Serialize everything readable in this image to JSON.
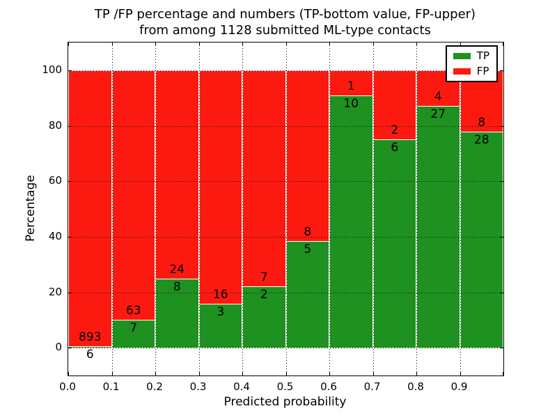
{
  "title": {
    "line1": "TP /FP percentage and numbers (TP-bottom value, FP-upper)",
    "line2": "from among 1128 submitted ML-type contacts"
  },
  "axes": {
    "xlabel": "Predicted probability",
    "ylabel": "Percentage"
  },
  "chart_data": {
    "type": "bar",
    "stacked": true,
    "title": "TP /FP percentage and numbers (TP-bottom value, FP-upper)\nfrom among 1128 submitted ML-type contacts",
    "xlabel": "Predicted probability",
    "ylabel": "Percentage",
    "total_submitted_contacts": 1128,
    "bin_edges": [
      0.0,
      0.1,
      0.2,
      0.3,
      0.4,
      0.5,
      0.6,
      0.7,
      0.8,
      0.9,
      1.0
    ],
    "xticks": [
      "0.0",
      "0.1",
      "0.2",
      "0.3",
      "0.4",
      "0.5",
      "0.6",
      "0.7",
      "0.8",
      "0.9"
    ],
    "yticks": [
      0,
      20,
      40,
      60,
      80,
      100
    ],
    "xlim": [
      0.0,
      1.0
    ],
    "ylim": [
      -10,
      110
    ],
    "grid": "dotted, both axes",
    "legend_position": "upper right",
    "series": [
      {
        "name": "TP",
        "color": "#1e9121",
        "values": [
          6,
          7,
          8,
          3,
          2,
          5,
          10,
          6,
          27,
          28
        ]
      },
      {
        "name": "FP",
        "color": "#fc1a10",
        "values": [
          893,
          63,
          24,
          16,
          7,
          8,
          1,
          2,
          4,
          8
        ]
      }
    ],
    "tp_percent_by_bin": [
      0.67,
      10.0,
      25.0,
      15.79,
      22.22,
      38.46,
      90.91,
      75.0,
      87.1,
      77.78
    ],
    "bar_edge_color": "#ffffff"
  }
}
